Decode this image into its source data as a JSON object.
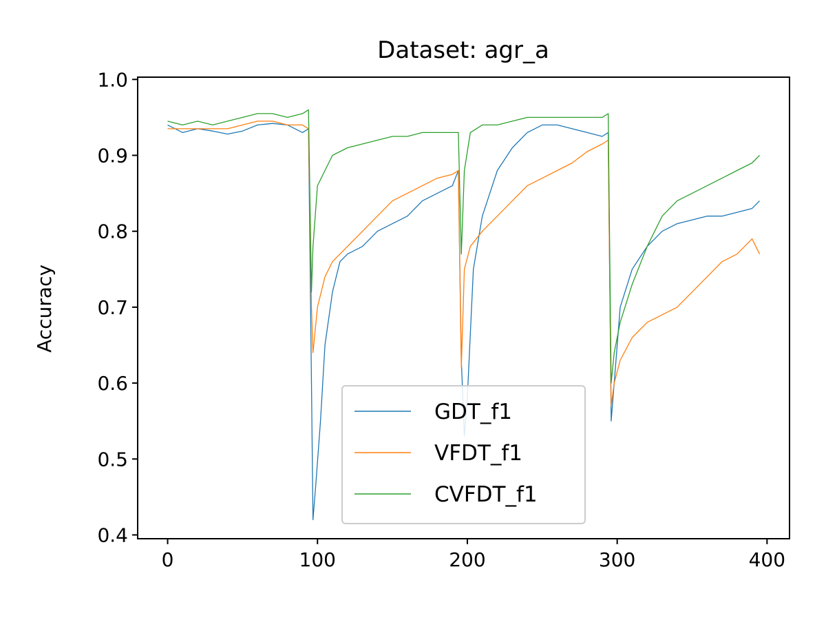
{
  "chart_data": {
    "type": "line",
    "title": "Dataset: agr_a",
    "xlabel": "",
    "ylabel": "Accuracy",
    "xlim": [
      -20,
      415
    ],
    "ylim": [
      0.395,
      1.003
    ],
    "xticks": [
      0,
      100,
      200,
      300,
      400
    ],
    "yticks": [
      0.4,
      0.5,
      0.6,
      0.7,
      0.8,
      0.9,
      1.0
    ],
    "xtick_labels": [
      "0",
      "100",
      "200",
      "300",
      "400"
    ],
    "ytick_labels": [
      "0.4",
      "0.5",
      "0.6",
      "0.7",
      "0.8",
      "0.9",
      "1.0"
    ],
    "grid": false,
    "legend_position": "lower-center",
    "series": [
      {
        "name": "GDT_f1",
        "color": "#1f77b4",
        "points": [
          [
            0,
            0.94
          ],
          [
            10,
            0.93
          ],
          [
            20,
            0.935
          ],
          [
            30,
            0.932
          ],
          [
            40,
            0.928
          ],
          [
            50,
            0.932
          ],
          [
            60,
            0.94
          ],
          [
            70,
            0.942
          ],
          [
            80,
            0.94
          ],
          [
            90,
            0.93
          ],
          [
            94,
            0.935
          ],
          [
            96,
            0.6
          ],
          [
            97,
            0.42
          ],
          [
            99,
            0.47
          ],
          [
            102,
            0.55
          ],
          [
            105,
            0.65
          ],
          [
            110,
            0.72
          ],
          [
            115,
            0.76
          ],
          [
            120,
            0.77
          ],
          [
            130,
            0.78
          ],
          [
            140,
            0.8
          ],
          [
            150,
            0.81
          ],
          [
            160,
            0.82
          ],
          [
            170,
            0.84
          ],
          [
            180,
            0.85
          ],
          [
            190,
            0.86
          ],
          [
            194,
            0.88
          ],
          [
            196,
            0.63
          ],
          [
            198,
            0.53
          ],
          [
            200,
            0.58
          ],
          [
            204,
            0.75
          ],
          [
            210,
            0.82
          ],
          [
            220,
            0.88
          ],
          [
            230,
            0.91
          ],
          [
            240,
            0.93
          ],
          [
            250,
            0.94
          ],
          [
            260,
            0.94
          ],
          [
            270,
            0.935
          ],
          [
            280,
            0.93
          ],
          [
            290,
            0.925
          ],
          [
            294,
            0.93
          ],
          [
            296,
            0.55
          ],
          [
            298,
            0.6
          ],
          [
            302,
            0.7
          ],
          [
            310,
            0.75
          ],
          [
            320,
            0.78
          ],
          [
            330,
            0.8
          ],
          [
            340,
            0.81
          ],
          [
            350,
            0.815
          ],
          [
            360,
            0.82
          ],
          [
            370,
            0.82
          ],
          [
            380,
            0.825
          ],
          [
            390,
            0.83
          ],
          [
            395,
            0.84
          ]
        ]
      },
      {
        "name": "VFDT_f1",
        "color": "#ff7f0e",
        "points": [
          [
            0,
            0.935
          ],
          [
            10,
            0.935
          ],
          [
            20,
            0.935
          ],
          [
            30,
            0.935
          ],
          [
            40,
            0.935
          ],
          [
            50,
            0.94
          ],
          [
            60,
            0.945
          ],
          [
            70,
            0.945
          ],
          [
            80,
            0.94
          ],
          [
            90,
            0.94
          ],
          [
            94,
            0.935
          ],
          [
            96,
            0.7
          ],
          [
            97,
            0.64
          ],
          [
            100,
            0.7
          ],
          [
            105,
            0.74
          ],
          [
            110,
            0.76
          ],
          [
            120,
            0.78
          ],
          [
            130,
            0.8
          ],
          [
            140,
            0.82
          ],
          [
            150,
            0.84
          ],
          [
            160,
            0.85
          ],
          [
            170,
            0.86
          ],
          [
            180,
            0.87
          ],
          [
            190,
            0.875
          ],
          [
            194,
            0.88
          ],
          [
            196,
            0.62
          ],
          [
            198,
            0.75
          ],
          [
            202,
            0.78
          ],
          [
            210,
            0.8
          ],
          [
            220,
            0.82
          ],
          [
            230,
            0.84
          ],
          [
            240,
            0.86
          ],
          [
            250,
            0.87
          ],
          [
            260,
            0.88
          ],
          [
            270,
            0.89
          ],
          [
            280,
            0.905
          ],
          [
            290,
            0.915
          ],
          [
            294,
            0.92
          ],
          [
            296,
            0.57
          ],
          [
            298,
            0.6
          ],
          [
            302,
            0.63
          ],
          [
            310,
            0.66
          ],
          [
            320,
            0.68
          ],
          [
            330,
            0.69
          ],
          [
            340,
            0.7
          ],
          [
            350,
            0.72
          ],
          [
            360,
            0.74
          ],
          [
            370,
            0.76
          ],
          [
            380,
            0.77
          ],
          [
            390,
            0.79
          ],
          [
            395,
            0.77
          ]
        ]
      },
      {
        "name": "CVFDT_f1",
        "color": "#2ca02c",
        "points": [
          [
            0,
            0.945
          ],
          [
            10,
            0.94
          ],
          [
            20,
            0.945
          ],
          [
            30,
            0.94
          ],
          [
            40,
            0.945
          ],
          [
            50,
            0.95
          ],
          [
            60,
            0.955
          ],
          [
            70,
            0.955
          ],
          [
            80,
            0.95
          ],
          [
            90,
            0.955
          ],
          [
            94,
            0.96
          ],
          [
            96,
            0.72
          ],
          [
            97,
            0.78
          ],
          [
            100,
            0.86
          ],
          [
            105,
            0.88
          ],
          [
            110,
            0.9
          ],
          [
            120,
            0.91
          ],
          [
            130,
            0.915
          ],
          [
            140,
            0.92
          ],
          [
            150,
            0.925
          ],
          [
            160,
            0.925
          ],
          [
            170,
            0.93
          ],
          [
            180,
            0.93
          ],
          [
            190,
            0.93
          ],
          [
            194,
            0.93
          ],
          [
            196,
            0.77
          ],
          [
            198,
            0.88
          ],
          [
            202,
            0.93
          ],
          [
            210,
            0.94
          ],
          [
            220,
            0.94
          ],
          [
            230,
            0.945
          ],
          [
            240,
            0.95
          ],
          [
            250,
            0.95
          ],
          [
            260,
            0.95
          ],
          [
            270,
            0.95
          ],
          [
            280,
            0.95
          ],
          [
            290,
            0.95
          ],
          [
            294,
            0.955
          ],
          [
            296,
            0.6
          ],
          [
            298,
            0.64
          ],
          [
            302,
            0.68
          ],
          [
            310,
            0.73
          ],
          [
            320,
            0.78
          ],
          [
            330,
            0.82
          ],
          [
            340,
            0.84
          ],
          [
            350,
            0.85
          ],
          [
            360,
            0.86
          ],
          [
            370,
            0.87
          ],
          [
            380,
            0.88
          ],
          [
            390,
            0.89
          ],
          [
            395,
            0.9
          ]
        ]
      }
    ]
  }
}
